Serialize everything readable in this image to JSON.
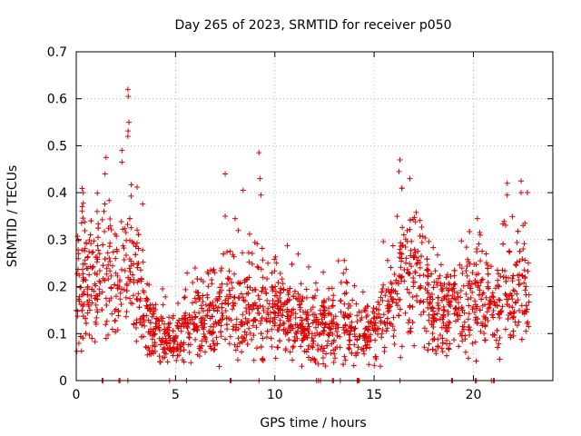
{
  "chart_data": {
    "type": "scatter",
    "title": "Day 265 of 2023, SRMTID for receiver p050",
    "xlabel": "GPS time / hours",
    "ylabel": "SRMTID / TECUs",
    "xlim": [
      0,
      24
    ],
    "ylim": [
      0,
      0.7
    ],
    "x_ticks": [
      0,
      5,
      10,
      15,
      20
    ],
    "x_tick_labels": [
      "0",
      "5",
      "10",
      "15",
      "20"
    ],
    "y_ticks": [
      0,
      0.1,
      0.2,
      0.3,
      0.4,
      0.5,
      0.6,
      0.7
    ],
    "y_tick_labels": [
      "0",
      "0.1",
      "0.2",
      "0.3",
      "0.4",
      "0.5",
      "0.6",
      "0.7"
    ],
    "grid": true,
    "marker": "+",
    "colors": {
      "series": "#e00000",
      "grid": "#a0a0a0",
      "axis": "#000000"
    },
    "generated_points": 2200,
    "envelope": {
      "x": [
        0,
        0.5,
        1.0,
        1.5,
        2.0,
        2.5,
        3.0,
        3.5,
        4.0,
        4.5,
        5.0,
        5.5,
        6.0,
        6.5,
        7.0,
        7.5,
        8.0,
        8.5,
        9.0,
        9.5,
        10.0,
        10.5,
        11.0,
        11.5,
        12.0,
        12.5,
        13.0,
        13.5,
        14.0,
        14.5,
        15.0,
        15.5,
        16.0,
        16.5,
        17.0,
        17.5,
        18.0,
        18.5,
        19.0,
        19.5,
        20.0,
        20.5,
        21.0,
        21.5,
        22.0,
        22.5,
        22.8
      ],
      "y": [
        0.18,
        0.22,
        0.2,
        0.25,
        0.2,
        0.25,
        0.22,
        0.15,
        0.11,
        0.08,
        0.08,
        0.12,
        0.14,
        0.14,
        0.13,
        0.16,
        0.16,
        0.17,
        0.16,
        0.15,
        0.15,
        0.14,
        0.12,
        0.12,
        0.11,
        0.12,
        0.11,
        0.13,
        0.11,
        0.1,
        0.12,
        0.14,
        0.17,
        0.25,
        0.25,
        0.2,
        0.14,
        0.14,
        0.15,
        0.17,
        0.2,
        0.18,
        0.15,
        0.2,
        0.18,
        0.22,
        0.17
      ]
    },
    "peak_points": [
      {
        "x": 2.6,
        "y": 0.62
      },
      {
        "x": 2.62,
        "y": 0.605
      },
      {
        "x": 2.65,
        "y": 0.55
      },
      {
        "x": 2.6,
        "y": 0.52
      },
      {
        "x": 2.3,
        "y": 0.49
      },
      {
        "x": 2.3,
        "y": 0.465
      },
      {
        "x": 1.5,
        "y": 0.475
      },
      {
        "x": 1.45,
        "y": 0.44
      },
      {
        "x": 0.35,
        "y": 0.4
      },
      {
        "x": 0.3,
        "y": 0.37
      },
      {
        "x": 9.2,
        "y": 0.485
      },
      {
        "x": 9.25,
        "y": 0.43
      },
      {
        "x": 9.3,
        "y": 0.395
      },
      {
        "x": 8.0,
        "y": 0.345
      },
      {
        "x": 7.5,
        "y": 0.44
      },
      {
        "x": 7.5,
        "y": 0.35
      },
      {
        "x": 8.4,
        "y": 0.405
      },
      {
        "x": 16.3,
        "y": 0.47
      },
      {
        "x": 16.25,
        "y": 0.445
      },
      {
        "x": 16.8,
        "y": 0.43
      },
      {
        "x": 21.7,
        "y": 0.42
      },
      {
        "x": 21.7,
        "y": 0.395
      },
      {
        "x": 22.4,
        "y": 0.425
      },
      {
        "x": 22.4,
        "y": 0.4
      },
      {
        "x": 20.2,
        "y": 0.345
      },
      {
        "x": 13.2,
        "y": 0.255
      },
      {
        "x": 4.6,
        "y": 0.04
      },
      {
        "x": 7.2,
        "y": 0.03
      }
    ],
    "zero_points_x": [
      1.3,
      1.35,
      2.15,
      2.2,
      2.6,
      4.7,
      5.55,
      7.75,
      7.8,
      9.2,
      12.1,
      12.2,
      12.3,
      12.9,
      12.95,
      13.3,
      14.15,
      14.2,
      14.25,
      16.3,
      18.9,
      18.95,
      20.1,
      20.15,
      20.9,
      21.0,
      21.05
    ]
  }
}
